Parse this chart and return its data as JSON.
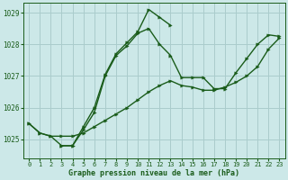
{
  "title": "Graphe pression niveau de la mer (hPa)",
  "background_color": "#cce8e8",
  "grid_color": "#aacccc",
  "line_color": "#1a5c1a",
  "marker_color": "#1a5c1a",
  "xlim_min": -0.5,
  "xlim_max": 23.5,
  "ylim_min": 1024.4,
  "ylim_max": 1029.3,
  "yticks": [
    1025,
    1026,
    1027,
    1028,
    1029
  ],
  "xticks": [
    0,
    1,
    2,
    3,
    4,
    5,
    6,
    7,
    8,
    9,
    10,
    11,
    12,
    13,
    14,
    15,
    16,
    17,
    18,
    19,
    20,
    21,
    22,
    23
  ],
  "series1_x": [
    0,
    1,
    2,
    3,
    4,
    5,
    6,
    7,
    8,
    9,
    10,
    11,
    12,
    13,
    14,
    15,
    16,
    17,
    18,
    19,
    20,
    21,
    22,
    23
  ],
  "series1_y": [
    1025.5,
    1025.2,
    1025.1,
    1025.1,
    1025.1,
    1025.2,
    1025.4,
    1025.6,
    1025.8,
    1026.0,
    1026.25,
    1026.5,
    1026.7,
    1026.85,
    1026.7,
    1026.65,
    1026.55,
    1026.55,
    1026.65,
    1026.8,
    1027.0,
    1027.3,
    1027.85,
    1028.2
  ],
  "series2_x": [
    0,
    1,
    2,
    3,
    4,
    5,
    6,
    7,
    8,
    9,
    10,
    11,
    12,
    13,
    14,
    15,
    16,
    17,
    18,
    19,
    20,
    21,
    22,
    23
  ],
  "series2_y": [
    1025.5,
    1025.2,
    1025.1,
    1024.8,
    1024.8,
    1025.3,
    1025.85,
    1027.0,
    1027.65,
    1027.95,
    1028.35,
    1028.5,
    1028.0,
    1027.65,
    1026.95,
    1026.95,
    1026.95,
    1026.6,
    1026.6,
    1027.1,
    1027.55,
    1028.0,
    1028.3,
    1028.25
  ],
  "series3_x": [
    3,
    4,
    5,
    6,
    7,
    8,
    9,
    10,
    11,
    12,
    13
  ],
  "series3_y": [
    1024.8,
    1024.8,
    1025.4,
    1026.0,
    1027.05,
    1027.7,
    1028.05,
    1028.4,
    1029.1,
    1028.85,
    1028.6
  ]
}
